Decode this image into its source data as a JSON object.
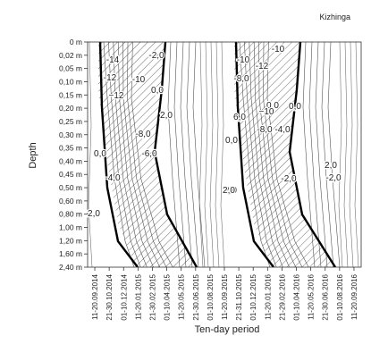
{
  "chart_data": {
    "type": "heatmap",
    "title": "Kizhinga",
    "xlabel": "Ten-day period",
    "ylabel": "Depth",
    "y_categories": [
      "0 m",
      "0,02 m",
      "0,05 m",
      "0,10 m",
      "0,15 m",
      "0,20 m",
      "0,25 m",
      "0,30 m",
      "0,35 m",
      "0,40 m",
      "0,45 m",
      "0,50 m",
      "0,60 m",
      "0,80 m",
      "1,00 m",
      "1,20 m",
      "1,60 m",
      "2,40 m"
    ],
    "x_categories": [
      "11-20.09.2014",
      "21-30.10.2014",
      "01-10.12.2014",
      "11-20.01.2015",
      "21-30.02.2015",
      "01-10.04.2015",
      "11-20.05.2015",
      "21-30.06.2015",
      "01-10.08.2015",
      "11-20.09.2015",
      "21-31.10.2015",
      "01-10.12.2015",
      "11-20.01.2016",
      "21-29.02.2016",
      "01-10.04.2016",
      "11-20.05.2016",
      "21-30.06.2016",
      "01-10.08.2016",
      "11-20.09.2016"
    ],
    "frozen_zone_hatched": true,
    "bold_isoline": "0,0",
    "contour_labels": [
      "-14",
      "-12",
      "−12",
      "-10",
      "-8,0",
      "-6,0",
      "-4,0",
      "-2,0",
      "0,0",
      "0,0",
      "2,0",
      "2,0",
      "2,0",
      "-2,0",
      "0,0",
      "-10",
      "-12",
      "-10",
      "-8,0",
      "-8,0",
      "−10",
      "-4,0",
      "6,0",
      "0,0",
      "0,0",
      "-2,0",
      "2,0",
      "2,0",
      "2,0"
    ]
  }
}
